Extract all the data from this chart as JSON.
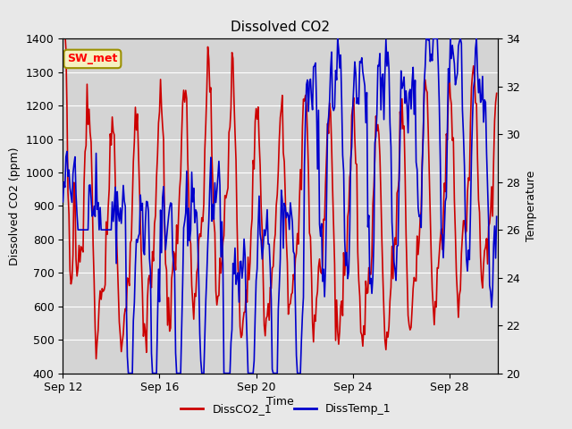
{
  "title": "Dissolved CO2",
  "xlabel": "Time",
  "ylabel_left": "Dissolved CO2 (ppm)",
  "ylabel_right": "Temperature",
  "annotation": "SW_met",
  "ylim_left": [
    400,
    1400
  ],
  "ylim_right": [
    20,
    34
  ],
  "yticks_left": [
    400,
    500,
    600,
    700,
    800,
    900,
    1000,
    1100,
    1200,
    1300,
    1400
  ],
  "yticks_right": [
    20,
    22,
    24,
    26,
    28,
    30,
    32,
    34
  ],
  "xtick_labels": [
    "Sep 12",
    "Sep 16",
    "Sep 20",
    "Sep 24",
    "Sep 28"
  ],
  "xtick_days": [
    12,
    16,
    20,
    24,
    28
  ],
  "color_co2": "#cc0000",
  "color_temp": "#0000cc",
  "line_width": 1.2,
  "bg_color": "#e8e8e8",
  "plot_bg_color": "#d4d4d4",
  "legend_labels": [
    "DissCO2_1",
    "DissTemp_1"
  ],
  "title_fontsize": 11,
  "axis_fontsize": 9,
  "legend_fontsize": 9,
  "annotation_fontsize": 9
}
